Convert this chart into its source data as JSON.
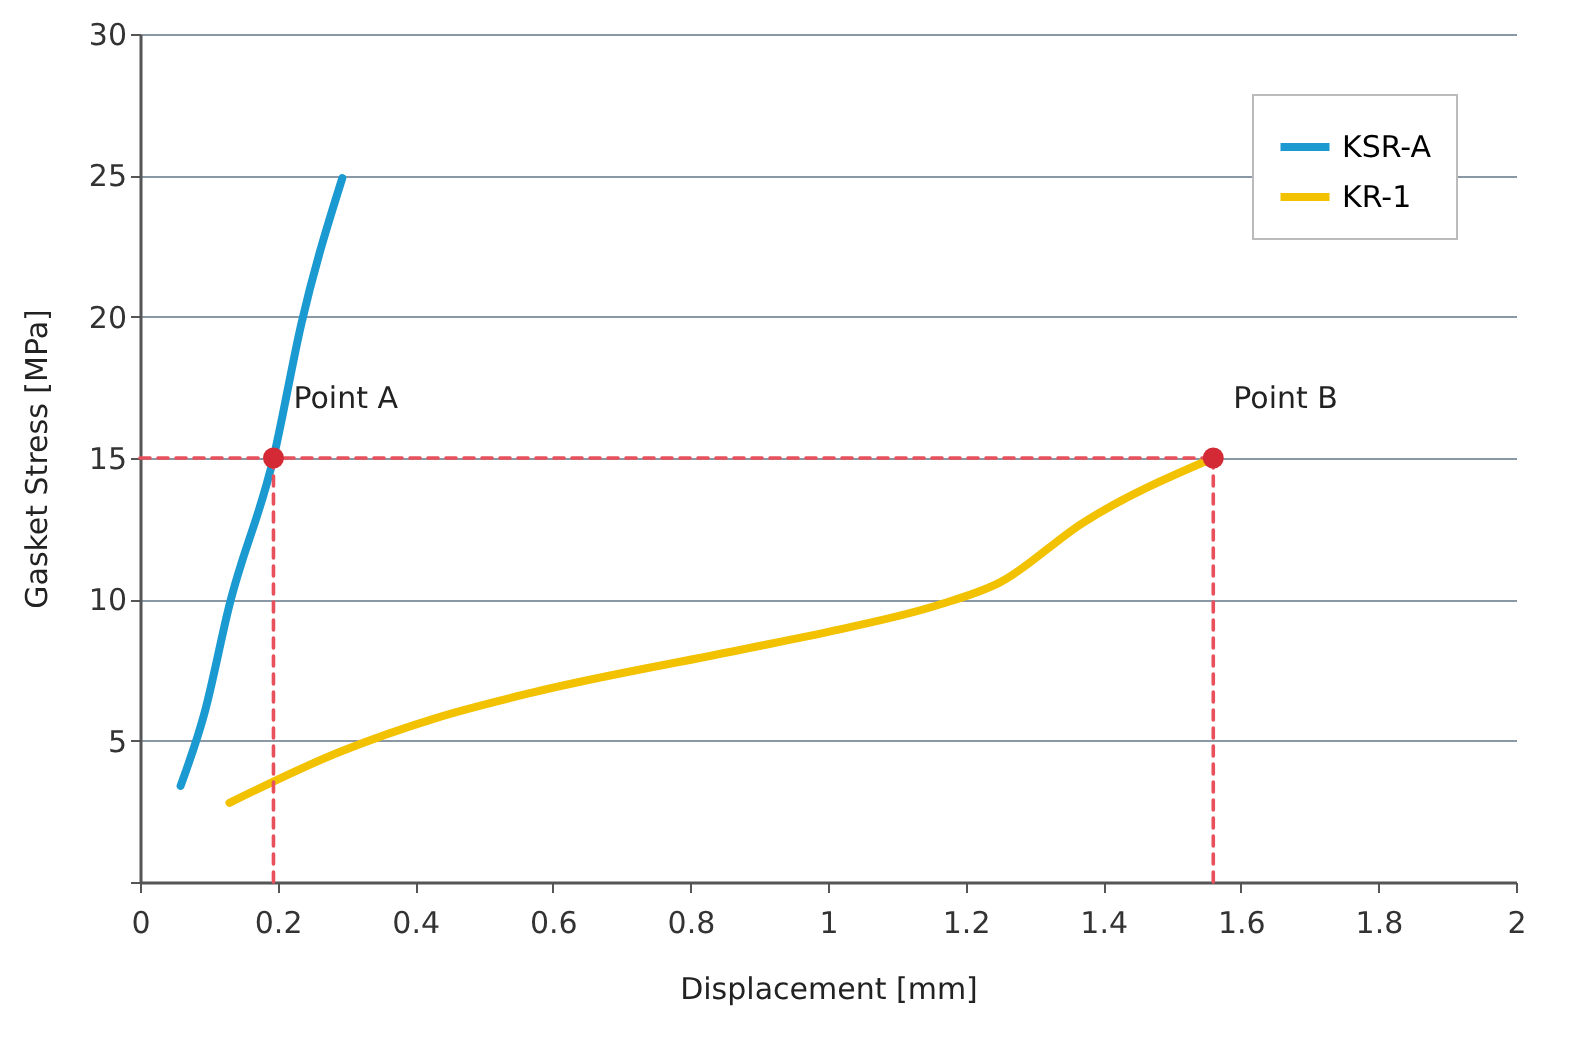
{
  "chart_data": {
    "type": "line",
    "xlabel": "Displacement [mm]",
    "ylabel": "Gasket Stress [MPa]",
    "xlim": [
      0,
      2
    ],
    "xticks": [
      0,
      0.2,
      0.4,
      0.6,
      0.8,
      1,
      1.2,
      1.4,
      1.6,
      1.8,
      2
    ],
    "ylim": [
      0,
      30
    ],
    "yticks": [
      {
        "value": 0,
        "label": null
      },
      5,
      10,
      15,
      20,
      25,
      30
    ],
    "grid": "y",
    "legend": "top right",
    "series": [
      {
        "name": "KSR-A",
        "color": "#1a9ad0",
        "x": [
          0.059,
          0.094,
          0.13,
          0.194,
          0.235,
          0.294
        ],
        "values": [
          3.4,
          6.0,
          9.8,
          15,
          19.8,
          24.9
        ]
      },
      {
        "name": "KR-1",
        "color": "#f2c200",
        "x": [
          0.13,
          0.29,
          0.43,
          0.57,
          0.87,
          1.01,
          1.16,
          1.25,
          1.37,
          1.56
        ],
        "values": [
          2.8,
          4.6,
          5.8,
          6.7,
          8.2,
          8.9,
          9.8,
          10.6,
          12.7,
          15
        ]
      },
      {
        "type": "line",
        "line_style": "dashed",
        "color": "#e8505b",
        "x": [
          0,
          1.56
        ],
        "values": [
          15,
          15
        ]
      },
      {
        "type": "line",
        "line_style": "dashed",
        "color": "#e8505b",
        "x": [
          0.194,
          0.194
        ],
        "values": [
          0,
          15
        ]
      },
      {
        "type": "line",
        "line_style": "dashed",
        "color": "#e8505b",
        "x": [
          1.56,
          1.56
        ],
        "values": [
          0,
          15
        ]
      },
      {
        "type": "scatter",
        "marker": "circle",
        "color": "#d42a36",
        "x": [
          0.194,
          1.56
        ],
        "values": [
          15,
          15
        ]
      }
    ],
    "annotations": [
      {
        "text": "Point A",
        "x": 0.194,
        "y": 15
      },
      {
        "text": "Point B",
        "x": 1.56,
        "y": 15
      }
    ]
  }
}
